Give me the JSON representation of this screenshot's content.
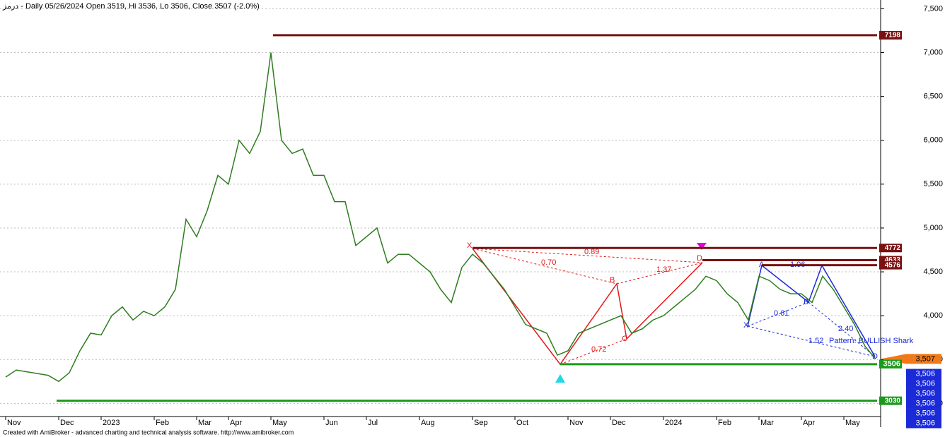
{
  "chart_data": {
    "type": "line",
    "title": "درمز - Daily 05/26/2024 Open 3519, Hi 3536, Lo 3506, Close 3507 (-2.0%)",
    "footer": "Created with AmiBroker - advanced charting and technical analysis software. http://www.amibroker.com",
    "categories": [
      "Nov",
      null,
      null,
      null,
      null,
      "Dec",
      null,
      null,
      null,
      "2023",
      null,
      null,
      null,
      null,
      "Feb",
      null,
      null,
      null,
      "Mar",
      null,
      null,
      "Apr",
      null,
      null,
      null,
      "May",
      null,
      null,
      null,
      null,
      "Jun",
      null,
      null,
      null,
      "Jul",
      null,
      null,
      null,
      null,
      "Aug",
      null,
      null,
      null,
      null,
      "Sep",
      null,
      null,
      null,
      "Oct",
      null,
      null,
      null,
      null,
      "Nov",
      null,
      null,
      null,
      "Dec",
      null,
      null,
      null,
      null,
      "2024",
      null,
      null,
      null,
      null,
      "Feb",
      null,
      null,
      null,
      "Mar",
      null,
      null,
      null,
      "Apr",
      null,
      null,
      null,
      "May",
      null,
      null,
      null
    ],
    "series": [
      {
        "color": "#2e7d1e",
        "values": [
          3300,
          3380,
          3360,
          3340,
          3320,
          3250,
          3350,
          3600,
          3800,
          3780,
          4000,
          4100,
          3950,
          4050,
          4000,
          4100,
          4300,
          5100,
          4900,
          5200,
          5600,
          5500,
          6000,
          5850,
          6100,
          7000,
          6000,
          5850,
          5900,
          5600,
          5600,
          5300,
          5300,
          4800,
          4900,
          5000,
          4600,
          4700,
          4700,
          4600,
          4500,
          4300,
          4150,
          4550,
          4700,
          4600,
          4450,
          4300,
          4100,
          3900,
          3850,
          3800,
          3550,
          3600,
          3800,
          3850,
          3900,
          3950,
          4000,
          3800,
          3850,
          3950,
          4000,
          4100,
          4200,
          4300,
          4450,
          4400,
          4250,
          4150,
          3950,
          4450,
          4400,
          4300,
          4250,
          4250,
          4150,
          4450,
          4300,
          4100,
          3900,
          3650,
          3507
        ]
      }
    ],
    "ylim": [
      2850,
      7600
    ],
    "yticks": [
      {
        "value": 3000,
        "label": "3,000"
      },
      {
        "value": 3500,
        "label": "3,500"
      },
      {
        "value": 4000,
        "label": "4,000"
      },
      {
        "value": 4500,
        "label": "4,500"
      },
      {
        "value": 5000,
        "label": "5,000"
      },
      {
        "value": 5500,
        "label": "5,500"
      },
      {
        "value": 6000,
        "label": "6,000"
      },
      {
        "value": 6500,
        "label": "6,500"
      },
      {
        "value": 7000,
        "label": "7,000"
      },
      {
        "value": 7500,
        "label": "7,500"
      }
    ],
    "grid": true,
    "levels": [
      {
        "value": 7198,
        "color": "#7a1010"
      },
      {
        "value": 4772,
        "color": "#7a1010"
      },
      {
        "value": 4633,
        "color": "#7a1010"
      },
      {
        "value": 4576,
        "color": "#7a1010"
      },
      {
        "value": 3447,
        "color": "#1a9a1a"
      },
      {
        "value": 3030,
        "color": "#1a9a1a"
      }
    ],
    "price_labels": [
      {
        "value": 3507,
        "label": "3,507",
        "color": "#f07a1a"
      },
      {
        "value": 3506,
        "color": "#1a9a1a"
      },
      {
        "value": 3506,
        "label": "3,506",
        "color": "#1a2ad8"
      },
      {
        "value": 3506,
        "label": "3,506",
        "color": "#1a2ad8"
      },
      {
        "value": 3506,
        "label": "3,506",
        "color": "#1a2ad8"
      },
      {
        "value": 3506,
        "label": "3,506",
        "color": "#1a2ad8"
      },
      {
        "value": 3506,
        "label": "3,506",
        "color": "#1a2ad8"
      },
      {
        "value": 3506,
        "label": "3,506",
        "color": "#1a2ad8"
      }
    ],
    "annotations": {
      "red": [
        "X",
        "0.89",
        "0.70",
        "B",
        "1.37",
        "D",
        "C",
        "0.72"
      ],
      "blue": [
        "A",
        "1.06",
        "B",
        "0.61",
        "X",
        "2.40",
        "1.52",
        "Pattern: BULLISH Shark",
        "D"
      ]
    }
  }
}
